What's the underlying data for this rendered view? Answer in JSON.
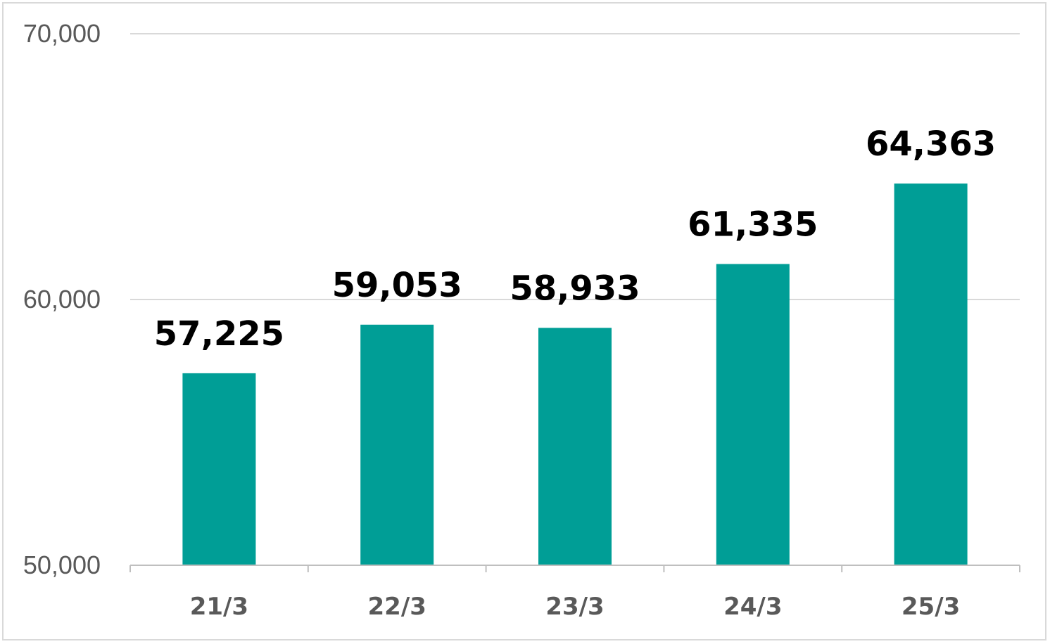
{
  "chart_data": {
    "type": "bar",
    "categories": [
      "21/3",
      "22/3",
      "23/3",
      "24/3",
      "25/3"
    ],
    "values": [
      57225,
      59053,
      58933,
      61335,
      64363
    ],
    "value_labels": [
      "57,225",
      "59,053",
      "58,933",
      "61,335",
      "64,363"
    ],
    "ylim": [
      50000,
      70000
    ],
    "yticks": [
      50000,
      60000,
      70000
    ],
    "ytick_labels": [
      "50,000",
      "60,000",
      "70,000"
    ],
    "grid": true,
    "bar_color": "#009e96",
    "title": "",
    "xlabel": "",
    "ylabel": ""
  }
}
